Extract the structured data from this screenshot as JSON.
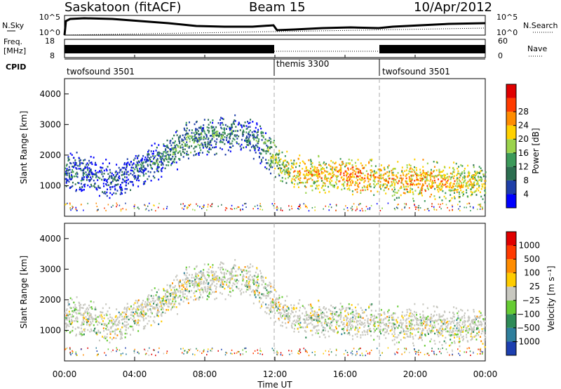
{
  "header": {
    "site": "Saskatoon (fitACF)",
    "beam": "Beam 15",
    "date": "10/Apr/2012"
  },
  "noise_panel": {
    "left_label": "N.Sky",
    "right_label": "N.Search",
    "left_ticks": [
      "10^5",
      "10^0"
    ],
    "right_ticks": [
      "10^5",
      "10^0"
    ]
  },
  "freq_panel": {
    "left_label_1": "Freq.",
    "left_label_2": "[MHz]",
    "right_label": "Nave",
    "left_ticks": [
      "18",
      "8"
    ],
    "right_ticks": [
      "60",
      "0"
    ]
  },
  "cpid": {
    "label": "CPID",
    "modes": [
      {
        "name": "twofsound 3501",
        "start_h": 0
      },
      {
        "name": "themis 3300",
        "start_h": 12
      },
      {
        "name": "twofsound 3501",
        "start_h": 18
      }
    ]
  },
  "axes": {
    "xlabel": "Time UT",
    "ylabel": "Slant Range [km]",
    "x_ticks": [
      "00:00",
      "04:00",
      "08:00",
      "12:00",
      "16:00",
      "20:00",
      "00:00"
    ],
    "y_ticks": [
      "1000",
      "2000",
      "3000",
      "4000"
    ]
  },
  "power_scale": {
    "label": "Power [dB]",
    "ticks": [
      "4",
      "8",
      "12",
      "16",
      "20",
      "24",
      "28"
    ],
    "colors": [
      "#0000ff",
      "#1f3fa8",
      "#2c6e50",
      "#3c9a5a",
      "#9bd34c",
      "#ffd100",
      "#ff8c00",
      "#ff3b00",
      "#e00000"
    ]
  },
  "velocity_scale": {
    "label": "Velocity [m s⁻¹]",
    "ticks": [
      "1000",
      "500",
      "100",
      "25",
      "−25",
      "−100",
      "−500",
      "−1000"
    ],
    "colors": [
      "#1c3fb0",
      "#2f7f9c",
      "#2e8b57",
      "#66cc33",
      "#c8c8c0",
      "#ffcc00",
      "#ff8c00",
      "#ff3a00",
      "#e00000"
    ]
  },
  "chart_data": {
    "type": "heatmap",
    "title": "Saskatoon (fitACF)  Beam 15  10/Apr/2012",
    "xlabel": "Time UT",
    "ylabel": "Slant Range [km]",
    "xlim": [
      "00:00",
      "24:00"
    ],
    "ylim": [
      0,
      4500
    ],
    "grid": false,
    "panels": [
      {
        "name": "Power",
        "colorbar": {
          "label": "Power [dB]",
          "range": [
            0,
            32
          ]
        },
        "scatter_bands": [
          {
            "t": [
              0,
              1,
              2,
              3,
              4,
              5,
              6,
              7,
              8,
              9,
              10,
              11,
              12,
              13,
              14,
              15,
              16,
              17,
              18,
              19,
              20,
              21,
              22,
              23,
              24
            ],
            "center_range_km": [
              1500,
              1450,
              1300,
              1200,
              1500,
              1750,
              2100,
              2450,
              2650,
              2700,
              2800,
              2500,
              1850,
              1500,
              1400,
              1400,
              1350,
              1300,
              1250,
              1250,
              1200,
              1200,
              1150,
              1150,
              1100
            ],
            "typical_power_db": [
              10,
              9,
              8,
              7,
              8,
              10,
              12,
              14,
              13,
              12,
              10,
              11,
              18,
              22,
              24,
              24,
              26,
              26,
              24,
              24,
              26,
              26,
              24,
              22,
              20
            ]
          }
        ]
      },
      {
        "name": "Velocity",
        "colorbar": {
          "label": "Velocity [m s-1]",
          "range": [
            -1000,
            1000
          ]
        },
        "typical_velocity_m_s": "mostly -25 to 25 (grey) with sporadic +/-100 to 500 patches"
      }
    ]
  }
}
